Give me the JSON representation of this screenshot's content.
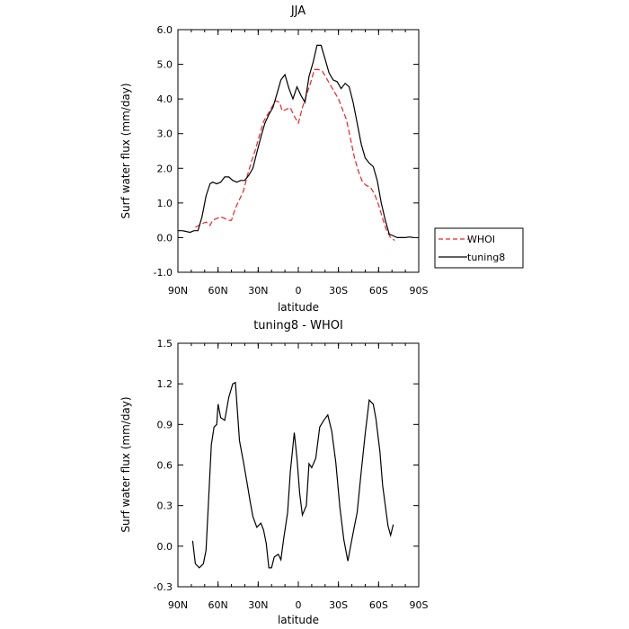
{
  "chart_data": [
    {
      "type": "line",
      "title": "JJA",
      "xlabel": "latitude",
      "ylabel": "Surf water flux (mm/day)",
      "xlim": [
        90,
        -90
      ],
      "ylim": [
        -1.0,
        6.0
      ],
      "xticks": [
        {
          "v": 90,
          "label": "90N"
        },
        {
          "v": 60,
          "label": "60N"
        },
        {
          "v": 30,
          "label": "30N"
        },
        {
          "v": 0,
          "label": "0"
        },
        {
          "v": -30,
          "label": "30S"
        },
        {
          "v": -60,
          "label": "60S"
        },
        {
          "v": -90,
          "label": "90S"
        }
      ],
      "yticks": [
        {
          "v": -1.0,
          "label": "-1.0"
        },
        {
          "v": 0.0,
          "label": "0.0"
        },
        {
          "v": 1.0,
          "label": "1.0"
        },
        {
          "v": 2.0,
          "label": "2.0"
        },
        {
          "v": 3.0,
          "label": "3.0"
        },
        {
          "v": 4.0,
          "label": "4.0"
        },
        {
          "v": 5.0,
          "label": "5.0"
        },
        {
          "v": 6.0,
          "label": "6.0"
        }
      ],
      "legend_position": "right",
      "series": [
        {
          "name": "WHOI",
          "color": "#e8252a",
          "dash": "dashed",
          "x": [
            77,
            72,
            69,
            66,
            64,
            61,
            58,
            55,
            52,
            50,
            47,
            44,
            41,
            38,
            35,
            32,
            29,
            26,
            23,
            20,
            17,
            14,
            12,
            9,
            6,
            3,
            0,
            -3,
            -6,
            -9,
            -12,
            -15,
            -18,
            -21,
            -24,
            -27,
            -30,
            -33,
            -36,
            -39,
            -42,
            -45,
            -48,
            -51,
            -54,
            -57,
            -60,
            -63,
            -66,
            -69,
            -72
          ],
          "y": [
            0.3,
            0.4,
            0.45,
            0.35,
            0.5,
            0.55,
            0.6,
            0.55,
            0.5,
            0.5,
            0.85,
            1.1,
            1.35,
            1.8,
            2.2,
            2.55,
            2.95,
            3.35,
            3.55,
            3.75,
            3.95,
            3.9,
            3.65,
            3.7,
            3.75,
            3.5,
            3.3,
            3.75,
            4.1,
            4.45,
            4.85,
            4.85,
            4.8,
            4.6,
            4.4,
            4.2,
            4.0,
            3.7,
            3.4,
            2.85,
            2.3,
            1.9,
            1.6,
            1.5,
            1.45,
            1.25,
            0.95,
            0.55,
            0.2,
            0.0,
            -0.08
          ]
        },
        {
          "name": "tuning8",
          "color": "#000000",
          "dash": "solid",
          "x": [
            90,
            87,
            84,
            81,
            78,
            75,
            72,
            69,
            66,
            64,
            61,
            58,
            55,
            52,
            49,
            46,
            43,
            40,
            37,
            34,
            31,
            28,
            25,
            22,
            19,
            16,
            13,
            10,
            7,
            4,
            1,
            -2,
            -5,
            -8,
            -11,
            -14,
            -17,
            -20,
            -23,
            -26,
            -29,
            -32,
            -35,
            -38,
            -41,
            -44,
            -47,
            -50,
            -53,
            -56,
            -59,
            -62,
            -65,
            -68,
            -71,
            -74,
            -77,
            -80,
            -83,
            -86
          ],
          "y": [
            0.2,
            0.2,
            0.18,
            0.15,
            0.2,
            0.2,
            0.6,
            1.2,
            1.55,
            1.6,
            1.55,
            1.6,
            1.75,
            1.75,
            1.65,
            1.6,
            1.65,
            1.65,
            1.8,
            2.0,
            2.45,
            2.9,
            3.3,
            3.55,
            3.75,
            4.15,
            4.55,
            4.7,
            4.3,
            4.0,
            4.35,
            4.1,
            3.9,
            4.65,
            5.05,
            5.55,
            5.55,
            5.15,
            4.75,
            4.55,
            4.5,
            4.3,
            4.45,
            4.35,
            3.9,
            3.3,
            2.7,
            2.3,
            2.15,
            2.05,
            1.65,
            1.0,
            0.5,
            0.1,
            0.05,
            0.0,
            0.0,
            0.0,
            0.02,
            0.0
          ]
        }
      ]
    },
    {
      "type": "line",
      "title": "tuning8 - WHOI",
      "xlabel": "latitude",
      "ylabel": "Surf water flux (mm/day)",
      "xlim": [
        90,
        -90
      ],
      "ylim": [
        -0.3,
        1.5
      ],
      "xticks": [
        {
          "v": 90,
          "label": "90N"
        },
        {
          "v": 60,
          "label": "60N"
        },
        {
          "v": 30,
          "label": "30N"
        },
        {
          "v": 0,
          "label": "0"
        },
        {
          "v": -30,
          "label": "30S"
        },
        {
          "v": -60,
          "label": "60S"
        },
        {
          "v": -90,
          "label": "90S"
        }
      ],
      "yticks": [
        {
          "v": -0.3,
          "label": "-0.3"
        },
        {
          "v": 0.0,
          "label": "0.0"
        },
        {
          "v": 0.3,
          "label": "0.3"
        },
        {
          "v": 0.6,
          "label": "0.6"
        },
        {
          "v": 0.9,
          "label": "0.9"
        },
        {
          "v": 1.2,
          "label": "1.2"
        },
        {
          "v": 1.5,
          "label": "1.5"
        }
      ],
      "series": [
        {
          "name": "",
          "color": "#000000",
          "dash": "solid",
          "x": [
            79,
            77,
            74,
            71,
            69,
            67,
            65,
            63,
            61,
            60,
            58,
            55,
            52,
            49,
            47,
            44,
            41,
            38,
            36,
            34,
            31,
            28,
            26,
            24,
            22,
            20,
            18,
            15,
            13,
            11,
            8,
            6,
            3,
            1,
            -1,
            -3,
            -6,
            -8,
            -10,
            -13,
            -16,
            -19,
            -22,
            -25,
            -28,
            -31,
            -34,
            -37,
            -40,
            -42,
            -44,
            -47,
            -50,
            -53,
            -56,
            -58,
            -61,
            -63,
            -65,
            -67,
            -69,
            -71
          ],
          "y": [
            0.04,
            -0.13,
            -0.16,
            -0.13,
            -0.03,
            0.35,
            0.75,
            0.88,
            0.9,
            1.05,
            0.95,
            0.93,
            1.1,
            1.2,
            1.21,
            0.78,
            0.62,
            0.45,
            0.33,
            0.22,
            0.14,
            0.17,
            0.12,
            0.02,
            -0.16,
            -0.16,
            -0.08,
            -0.06,
            -0.1,
            0.05,
            0.25,
            0.55,
            0.84,
            0.65,
            0.39,
            0.23,
            0.3,
            0.61,
            0.58,
            0.65,
            0.88,
            0.93,
            0.97,
            0.85,
            0.62,
            0.29,
            0.05,
            -0.11,
            0.05,
            0.15,
            0.25,
            0.55,
            0.83,
            1.08,
            1.05,
            0.94,
            0.7,
            0.45,
            0.3,
            0.15,
            0.08,
            0.16
          ]
        }
      ]
    }
  ]
}
